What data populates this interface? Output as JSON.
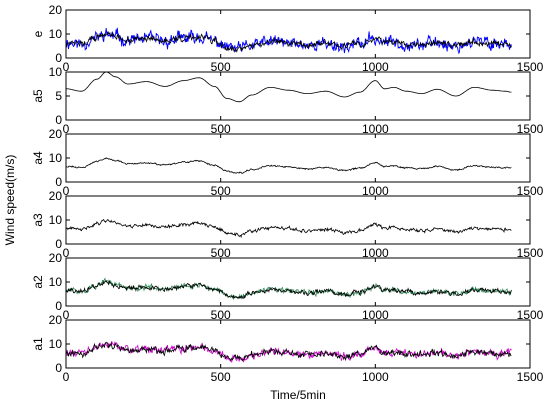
{
  "chart_data": {
    "type": "line",
    "ylabel": "Wind speed(m/s)",
    "xlabel": "Time/5min",
    "xlim": [
      0,
      1500
    ],
    "xticks": [
      0,
      500,
      1000,
      1500
    ],
    "grid": false,
    "panels": [
      {
        "name": "e",
        "ylim": [
          0,
          20
        ],
        "yticks": [
          0,
          10,
          20
        ],
        "series": [
          {
            "name": "",
            "color": "#0000ff",
            "noise": 3.2,
            "seed": 11
          },
          {
            "name": "",
            "color": "#000000",
            "noise": 1.6,
            "seed": 12
          }
        ]
      },
      {
        "name": "a5",
        "ylim": [
          0,
          10
        ],
        "yticks": [
          0,
          5,
          10
        ],
        "series": [
          {
            "name": "",
            "color": "#000000",
            "noise": 0,
            "seed": 21
          }
        ]
      },
      {
        "name": "a4",
        "ylim": [
          0,
          20
        ],
        "yticks": [
          0,
          10,
          20
        ],
        "series": [
          {
            "name": "",
            "color": "#000000",
            "noise": 0.4,
            "seed": 31
          }
        ]
      },
      {
        "name": "a3",
        "ylim": [
          0,
          20
        ],
        "yticks": [
          0,
          10,
          20
        ],
        "series": [
          {
            "name": "",
            "color": "#000000",
            "noise": 0.9,
            "seed": 41
          }
        ]
      },
      {
        "name": "a2",
        "ylim": [
          0,
          20
        ],
        "yticks": [
          0,
          10,
          20
        ],
        "series": [
          {
            "name": "",
            "color": "#2e8b57",
            "noise": 1.4,
            "seed": 51
          },
          {
            "name": "",
            "color": "#000000",
            "noise": 1.2,
            "seed": 52
          }
        ]
      },
      {
        "name": "a1",
        "ylim": [
          0,
          20
        ],
        "yticks": [
          0,
          10,
          20
        ],
        "series": [
          {
            "name": "",
            "color": "#cc00cc",
            "noise": 2.0,
            "seed": 61
          },
          {
            "name": "",
            "color": "#000000",
            "noise": 1.6,
            "seed": 62
          }
        ]
      }
    ],
    "base_trend": {
      "x": [
        0,
        50,
        100,
        130,
        160,
        200,
        260,
        320,
        380,
        430,
        480,
        520,
        560,
        600,
        660,
        720,
        780,
        840,
        900,
        950,
        1000,
        1030,
        1060,
        1100,
        1150,
        1200,
        1260,
        1320,
        1380,
        1420,
        1440
      ],
      "y": [
        6.5,
        6.0,
        8.5,
        10.0,
        9.0,
        7.5,
        8.0,
        7.0,
        8.2,
        8.8,
        7.0,
        4.5,
        3.8,
        5.2,
        6.8,
        6.2,
        5.5,
        6.0,
        4.8,
        5.8,
        8.2,
        6.5,
        6.8,
        6.0,
        5.5,
        6.4,
        5.0,
        6.8,
        6.2,
        6.0,
        5.8
      ]
    }
  }
}
